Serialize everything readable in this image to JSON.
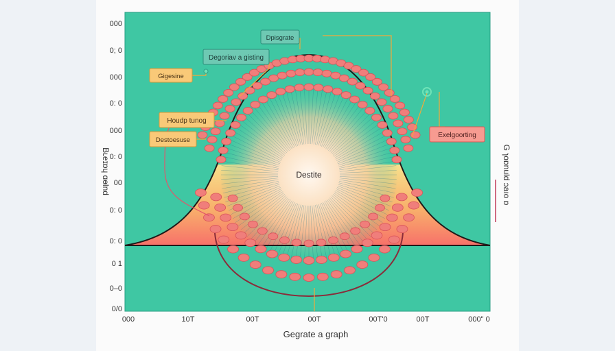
{
  "y_ticks": [
    "000",
    "0; 0",
    "000",
    "0: 0",
    "000",
    "0: 0",
    "00",
    "0: 0",
    "0: 0",
    "0 1",
    "0–0",
    "0/0"
  ],
  "x_ticks": [
    "000",
    "10T",
    "00T",
    "00T",
    "00T'0",
    "00T",
    "000\" 0"
  ],
  "left_axis_label": "Bʟeɪɒɥ ɑɵlnd",
  "right_axis_label": "G ɿoɒnuld ɔaıo ɒ",
  "x_axis_title": "Gegrate a graph",
  "center_label": "Destite",
  "callouts": {
    "top": "Dpisgrate",
    "teal_left": "Degoriav a gisting",
    "orange_1": "Gigesine",
    "orange_2": "Houdp tunog",
    "orange_3": "Destoesuse",
    "pink_right": "Exelgoorting"
  },
  "colors": {
    "plot_background": "#3fc7a3",
    "curve_outline": "#1f1a1a",
    "bead": "#f07e7b",
    "bead_stroke": "#d9535a",
    "orange_box": "#f9c978",
    "teal_box": "#6ec9b3",
    "pink_box": "#f79b91",
    "leader_line": "#f2a93a"
  }
}
